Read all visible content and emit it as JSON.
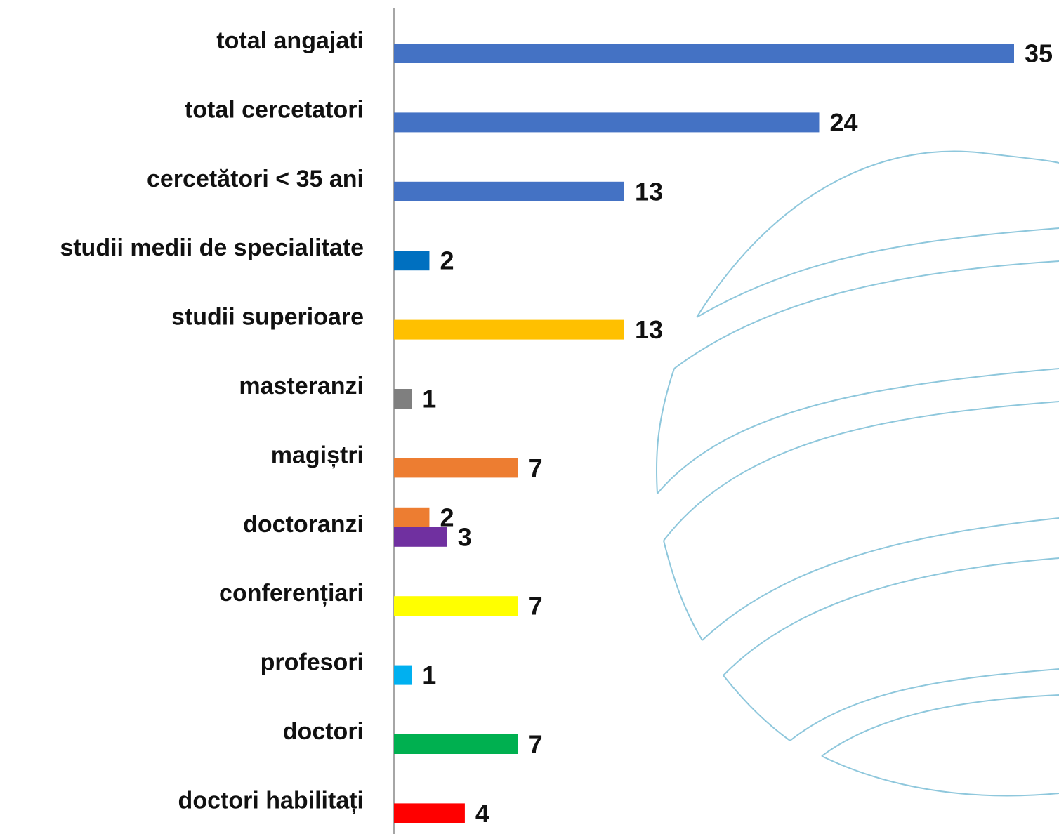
{
  "chart_data": {
    "type": "bar",
    "orientation": "horizontal",
    "categories": [
      "total angajati",
      "total cercetatori",
      "cercetători < 35 ani",
      "studii medii de specialitate",
      "studii superioare",
      "masteranzi",
      "magiștri",
      "doctoranzi",
      "conferențiari",
      "profesori",
      "doctori",
      "doctori habilitați"
    ],
    "values": [
      [
        35
      ],
      [
        24
      ],
      [
        13
      ],
      [
        2
      ],
      [
        13
      ],
      [
        1
      ],
      [
        7
      ],
      [
        2,
        3
      ],
      [
        7
      ],
      [
        1
      ],
      [
        7
      ],
      [
        4
      ]
    ],
    "colors": [
      [
        "#4472c4"
      ],
      [
        "#4472c4"
      ],
      [
        "#4472c4"
      ],
      [
        "#0070c0"
      ],
      [
        "#ffc000"
      ],
      [
        "#7f7f7f"
      ],
      [
        "#ed7d31"
      ],
      [
        "#ed7d31",
        "#7030a0"
      ],
      [
        "#ffff00"
      ],
      [
        "#00b0f0"
      ],
      [
        "#00b050"
      ],
      [
        "#ff0000"
      ]
    ],
    "xlim": [
      0,
      35
    ]
  }
}
